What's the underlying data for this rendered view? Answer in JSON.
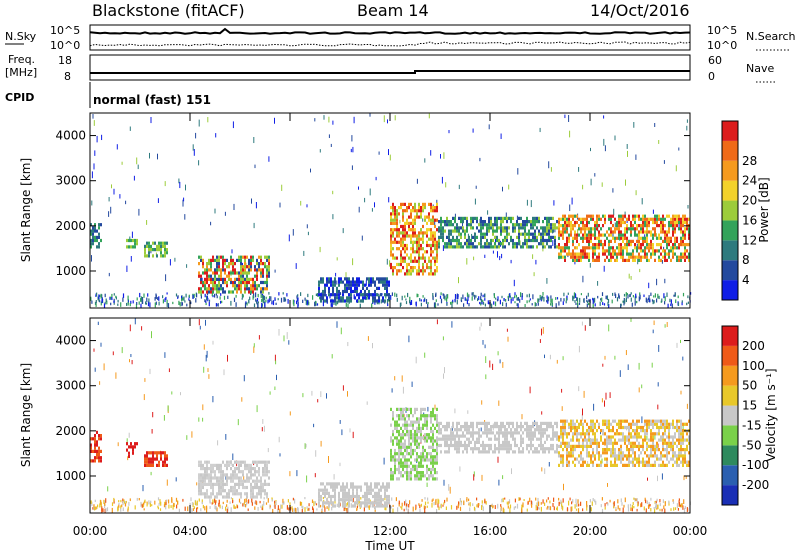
{
  "header": {
    "title": "Blackstone (fitACF)",
    "beam": "Beam 14",
    "date": "14/Oct/2016"
  },
  "panels": {
    "nsky_label": "N.Sky",
    "nsearch_label": "N.Search",
    "noise_left_ticks": [
      "10^5",
      "10^0"
    ],
    "noise_right_ticks": [
      "10^5",
      "10^0"
    ],
    "freq_label_line1": "Freq.",
    "freq_label_line2": "[MHz]",
    "freq_ticks": [
      "18",
      "8"
    ],
    "nave_label": "Nave",
    "nave_ticks": [
      "60",
      "0"
    ],
    "cpid_label": "CPID",
    "cpid_text": "normal (fast) 151"
  },
  "chart_data": [
    {
      "type": "heatmap",
      "panel": "power",
      "ylabel": "Slant Range [km]",
      "yticks": [
        1000,
        2000,
        3000,
        4000
      ],
      "ylim": [
        180,
        4500
      ],
      "xlabel": "Time UT",
      "xticks": [
        "00:00",
        "04:00",
        "08:00",
        "12:00",
        "16:00",
        "20:00",
        "00:00"
      ],
      "colorbar": {
        "label": "Power [dB]",
        "ticks": [
          "4",
          "8",
          "12",
          "16",
          "20",
          "24",
          "28"
        ],
        "colors": [
          "#0f1ee6",
          "#23499e",
          "#2e7a7e",
          "#33a35a",
          "#9ccc3a",
          "#f3d22a",
          "#f59a1e",
          "#ef6a18",
          "#dd1c1c"
        ]
      }
    },
    {
      "type": "heatmap",
      "panel": "velocity",
      "ylabel": "Slant Range [km]",
      "yticks": [
        1000,
        2000,
        3000,
        4000
      ],
      "ylim": [
        180,
        4500
      ],
      "xlabel": "Time UT",
      "xticks": [
        "00:00",
        "04:00",
        "08:00",
        "12:00",
        "16:00",
        "20:00",
        "00:00"
      ],
      "colorbar": {
        "label": "Velocity [m s⁻¹]",
        "ticks": [
          "200",
          "100",
          "50",
          "15",
          "-15",
          "-50",
          "-100",
          "-200"
        ],
        "colors": [
          "#1a2fb5",
          "#2a5fb0",
          "#2e8a5e",
          "#7ad14a",
          "#c8c8c8",
          "#e8c82a",
          "#f59a1e",
          "#ef5a18",
          "#dd1c1c"
        ]
      }
    }
  ]
}
